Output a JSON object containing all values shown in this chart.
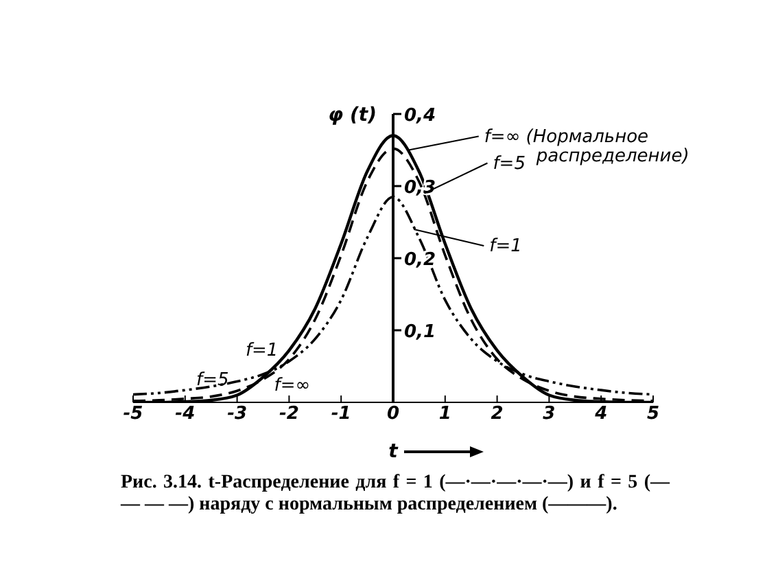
{
  "chart_data": {
    "type": "line",
    "xlabel": "t",
    "ylabel": "φ (t)",
    "x": [
      -5,
      -4.5,
      -4,
      -3.5,
      -3,
      -2.5,
      -2,
      -1.5,
      -1,
      -0.5,
      0,
      0.5,
      1,
      1.5,
      2,
      2.5,
      3,
      3.5,
      4,
      4.5,
      5
    ],
    "series": [
      {
        "name": "f=∞",
        "color": "#000000",
        "line_style": "solid",
        "values": [
          0,
          0,
          0.001,
          0.003,
          0.01,
          0.035,
          0.072,
          0.13,
          0.22,
          0.32,
          0.37,
          0.32,
          0.22,
          0.13,
          0.072,
          0.035,
          0.01,
          0.003,
          0.001,
          0,
          0
        ]
      },
      {
        "name": "f=5",
        "color": "#000000",
        "line_style": "dashed",
        "values": [
          0.002,
          0.003,
          0.005,
          0.008,
          0.016,
          0.032,
          0.06,
          0.115,
          0.204,
          0.306,
          0.352,
          0.306,
          0.204,
          0.115,
          0.06,
          0.032,
          0.016,
          0.008,
          0.005,
          0.003,
          0.002
        ]
      },
      {
        "name": "f=1",
        "color": "#000000",
        "line_style": "dotted",
        "values": [
          0.011,
          0.013,
          0.017,
          0.022,
          0.029,
          0.039,
          0.057,
          0.088,
          0.142,
          0.228,
          0.285,
          0.228,
          0.142,
          0.088,
          0.057,
          0.039,
          0.029,
          0.022,
          0.017,
          0.013,
          0.011
        ]
      }
    ],
    "xlim": [
      -5,
      5
    ],
    "xticks": [
      -5,
      -4,
      -3,
      -2,
      -1,
      0,
      1,
      2,
      3,
      4,
      5
    ],
    "ylim": [
      0,
      0.4
    ],
    "yticks": [
      {
        "value": 0.1,
        "label": "0,1"
      },
      {
        "value": 0.2,
        "label": "0,2"
      },
      {
        "value": 0.3,
        "label": "0,3"
      },
      {
        "value": 0.4,
        "label": "0,4"
      }
    ],
    "grid": false,
    "legend": false,
    "marker": "none",
    "annotations": [
      {
        "text": "f=∞ (Нормальное распределение)",
        "x": 0.3,
        "y": 0.35
      },
      {
        "text": "f=5",
        "x": 0.6,
        "y": 0.29
      },
      {
        "text": "f=1",
        "x": 0.4,
        "y": 0.24
      },
      "Рис. 3.14. t-Распределение для f = 1 (—·—·—·—·—) и f = 5 (— — — —) наряду с нормальным распределением (———)."
    ]
  }
}
